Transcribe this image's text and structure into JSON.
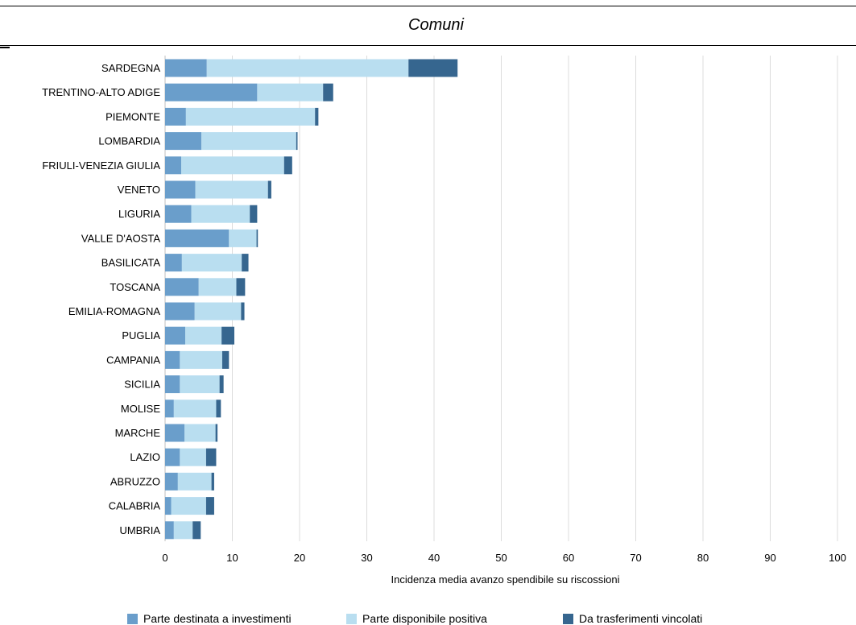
{
  "header": {
    "title": "Comuni"
  },
  "chart_data": {
    "type": "bar",
    "orientation": "horizontal",
    "stacked": true,
    "title": "Comuni",
    "xlabel": "Incidenza media avanzo spendibile su riscossioni",
    "ylabel": "",
    "xlim": [
      0,
      100
    ],
    "xticks": [
      0,
      10,
      20,
      30,
      40,
      50,
      60,
      70,
      80,
      90,
      100
    ],
    "grid": "vertical",
    "legend_position": "bottom",
    "categories": [
      "SARDEGNA",
      "TRENTINO-ALTO ADIGE",
      "PIEMONTE",
      "LOMBARDIA",
      "FRIULI-VENEZIA GIULIA",
      "VENETO",
      "LIGURIA",
      "VALLE D'AOSTA",
      "BASILICATA",
      "TOSCANA",
      "EMILIA-ROMAGNA",
      "PUGLIA",
      "CAMPANIA",
      "SICILIA",
      "MOLISE",
      "MARCHE",
      "LAZIO",
      "ABRUZZO",
      "CALABRIA",
      "UMBRIA"
    ],
    "series": [
      {
        "name": "Parte destinata a investimenti",
        "color": "#6a9ecb",
        "values": [
          6.2,
          13.7,
          3.1,
          5.4,
          2.4,
          4.5,
          3.9,
          9.5,
          2.5,
          5.0,
          4.4,
          3.0,
          2.2,
          2.2,
          1.3,
          2.9,
          2.2,
          1.9,
          0.9,
          1.3
        ]
      },
      {
        "name": "Parte disponibile positiva",
        "color": "#b9def0",
        "values": [
          30.0,
          9.8,
          19.2,
          14.1,
          15.3,
          10.8,
          8.7,
          4.1,
          8.9,
          5.6,
          6.9,
          5.4,
          6.3,
          5.9,
          6.3,
          4.6,
          3.9,
          5.0,
          5.2,
          2.8
        ]
      },
      {
        "name": "Da trasferimenti vincolati",
        "color": "#36668f",
        "values": [
          7.3,
          1.5,
          0.5,
          0.2,
          1.2,
          0.5,
          1.1,
          0.2,
          1.0,
          1.3,
          0.5,
          1.9,
          1.0,
          0.6,
          0.7,
          0.3,
          1.5,
          0.4,
          1.2,
          1.2
        ]
      }
    ]
  }
}
